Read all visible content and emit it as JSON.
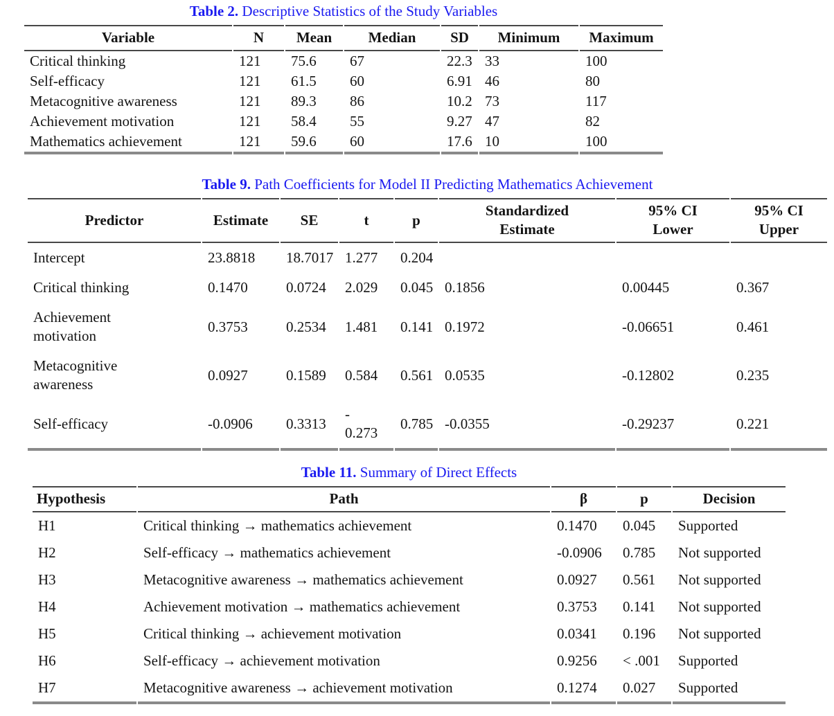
{
  "colors": {
    "title_blue": "#1a1af0",
    "rule_dark": "#474747",
    "rule_gray": "#8a8a8a"
  },
  "tables": {
    "table2": {
      "caption_label": "Table 2.",
      "caption_text": " Descriptive Statistics of the Study Variables",
      "columns": [
        "Variable",
        "N",
        "Mean",
        "Median",
        "SD",
        "Minimum",
        "Maximum"
      ],
      "rows": [
        [
          "Critical thinking",
          "121",
          "75.6",
          "67",
          "22.3",
          "33",
          "100"
        ],
        [
          "Self-efficacy",
          "121",
          "61.5",
          "60",
          "6.91",
          "46",
          "80"
        ],
        [
          "Metacognitive awareness",
          "121",
          "89.3",
          "86",
          "10.2",
          "73",
          "117"
        ],
        [
          "Achievement motivation",
          "121",
          "58.4",
          "55",
          "9.27",
          "47",
          "82"
        ],
        [
          "Mathematics achievement",
          "121",
          "59.6",
          "60",
          "17.6",
          "10",
          "100"
        ]
      ]
    },
    "table9": {
      "caption_label": "Table 9.",
      "caption_text": " Path Coefficients for Model II Predicting Mathematics Achievement",
      "columns": [
        "Predictor",
        "Estimate",
        "SE",
        "t",
        "p",
        "Standardized\nEstimate",
        "95% CI\nLower",
        "95% CI\nUpper"
      ],
      "rows": [
        [
          "Intercept",
          "23.8818",
          "18.7017",
          "1.277",
          "0.204",
          "",
          "",
          ""
        ],
        [
          "Critical thinking",
          "0.1470",
          "0.0724",
          "2.029",
          "0.045",
          "0.1856",
          "0.00445",
          "0.367"
        ],
        [
          "Achievement\nmotivation",
          "0.3753",
          "0.2534",
          "1.481",
          "0.141",
          "0.1972",
          "-0.06651",
          "0.461"
        ],
        [
          "Metacognitive\nawareness",
          "0.0927",
          "0.1589",
          "0.584",
          "0.561",
          "0.0535",
          "-0.12802",
          "0.235"
        ],
        [
          "Self-efficacy",
          "-0.0906",
          "0.3313",
          "-\n0.273",
          "0.785",
          "-0.0355",
          "-0.29237",
          "0.221"
        ]
      ]
    },
    "table11": {
      "caption_label": "Table 11.",
      "caption_text": " Summary of Direct Effects",
      "columns": [
        "Hypothesis",
        "Path",
        "β",
        "p",
        "Decision"
      ],
      "rows": [
        [
          "H1",
          "Critical thinking → mathematics achievement",
          "0.1470",
          "0.045",
          "Supported"
        ],
        [
          "H2",
          "Self-efficacy → mathematics achievement",
          "-0.0906",
          "0.785",
          "Not supported"
        ],
        [
          "H3",
          "Metacognitive awareness → mathematics achievement",
          "0.0927",
          "0.561",
          "Not supported"
        ],
        [
          "H4",
          "Achievement motivation → mathematics achievement",
          "0.3753",
          "0.141",
          "Not supported"
        ],
        [
          "H5",
          "Critical thinking → achievement motivation",
          "0.0341",
          "0.196",
          "Not supported"
        ],
        [
          "H6",
          "Self-efficacy → achievement motivation",
          "0.9256",
          "< .001",
          "Supported"
        ],
        [
          "H7",
          "Metacognitive awareness → achievement motivation",
          "0.1274",
          "0.027",
          "Supported"
        ]
      ]
    }
  }
}
